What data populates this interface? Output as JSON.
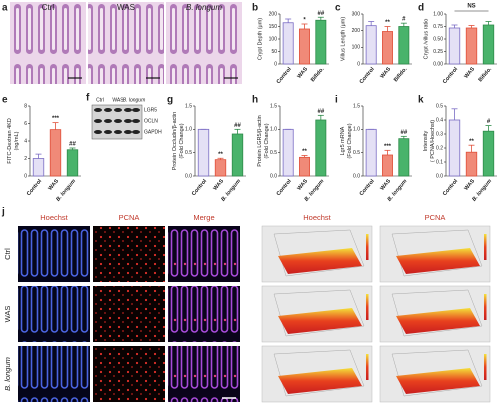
{
  "figure": {
    "a": {
      "letter": "a",
      "labels": [
        "Ctrl",
        "WAS",
        "B. longum"
      ]
    },
    "f": {
      "letter": "f",
      "lanes": [
        "Ctrl",
        "WAS",
        "B. longum"
      ],
      "bands": [
        "LGR5",
        "OCLN",
        "GAPDH"
      ]
    },
    "j": {
      "letter": "j",
      "columns": [
        "Hoechst",
        "PCNA",
        "Merge",
        "Hoechst",
        "PCNA"
      ],
      "rows": [
        "Ctrl",
        "WAS",
        "B. longum"
      ]
    }
  },
  "chart_data": [
    {
      "type": "bar",
      "label": "b",
      "ylabel": [
        "Crypt Depth (μm)"
      ],
      "categories": [
        "Control",
        "WAS",
        "Bifido."
      ],
      "values": [
        165,
        140,
        175
      ],
      "errors": [
        15,
        20,
        12
      ],
      "ylim": [
        0,
        200
      ],
      "yticks": [
        0,
        50,
        100,
        150,
        200
      ],
      "value_marks": [
        null,
        "*",
        "##"
      ],
      "colors": [
        "#e4e0f5",
        "#f08a78",
        "#49b36b"
      ],
      "edgecolors": [
        "#7a6cc4",
        "#e0503a",
        "#2e8b4a"
      ]
    },
    {
      "type": "bar",
      "label": "c",
      "ylabel": [
        "Villus Length (μm)"
      ],
      "categories": [
        "Control",
        "WAS",
        "Bifido."
      ],
      "values": [
        230,
        195,
        225
      ],
      "errors": [
        25,
        30,
        20
      ],
      "ylim": [
        0,
        300
      ],
      "yticks": [
        0,
        100,
        200,
        300
      ],
      "value_marks": [
        null,
        "**",
        "#"
      ],
      "colors": [
        "#e4e0f5",
        "#f08a78",
        "#49b36b"
      ],
      "edgecolors": [
        "#7a6cc4",
        "#e0503a",
        "#2e8b4a"
      ]
    },
    {
      "type": "bar",
      "label": "d",
      "ylabel": [
        "Crypt /villus ratio"
      ],
      "categories": [
        "Control",
        "WAS",
        "Bifido."
      ],
      "values": [
        0.72,
        0.72,
        0.78
      ],
      "errors": [
        0.06,
        0.05,
        0.07
      ],
      "ylim": [
        0,
        1
      ],
      "yticks": [
        {
          "value": 0,
          "label": "0.00"
        },
        {
          "value": 0.25,
          "label": "0.25"
        },
        {
          "value": 0.5,
          "label": "0.50"
        },
        {
          "value": 0.75,
          "label": "0.75"
        },
        {
          "value": 1,
          "label": "1.00"
        }
      ],
      "annotation": "NS",
      "colors": [
        "#e4e0f5",
        "#f08a78",
        "#49b36b"
      ],
      "edgecolors": [
        "#7a6cc4",
        "#e0503a",
        "#2e8b4a"
      ]
    },
    {
      "type": "bar",
      "label": "e",
      "ylabel": [
        "FITC-Dextran 4KD",
        "(ng/mL)"
      ],
      "categories": [
        "Control",
        "WAS",
        "B. longum"
      ],
      "values": [
        2.0,
        5.3,
        3.0
      ],
      "errors": [
        0.5,
        0.8,
        0.2
      ],
      "ylim": [
        0,
        8
      ],
      "yticks": [
        0,
        2,
        4,
        6,
        8
      ],
      "value_marks": [
        null,
        "***",
        "##"
      ],
      "colors": [
        "#e4e0f5",
        "#f08a78",
        "#49b36b"
      ],
      "edgecolors": [
        "#7a6cc4",
        "#e0503a",
        "#2e8b4a"
      ]
    },
    {
      "type": "bar",
      "label": "g",
      "ylabel": [
        "Protein Occludin/β-actin",
        "(Fold Change)"
      ],
      "categories": [
        "Control",
        "WAS",
        "B. longum"
      ],
      "values": [
        1.0,
        0.35,
        0.9
      ],
      "errors": [
        0,
        0.03,
        0.1
      ],
      "ylim": [
        0,
        1.5
      ],
      "yticks": [
        {
          "value": 0,
          "label": "0.0"
        },
        {
          "value": 0.5,
          "label": "0.5"
        },
        {
          "value": 1,
          "label": "1.0"
        },
        {
          "value": 1.5,
          "label": "1.5"
        }
      ],
      "value_marks": [
        null,
        "**",
        "##"
      ],
      "colors": [
        "#e4e0f5",
        "#f08a78",
        "#49b36b"
      ],
      "edgecolors": [
        "#7a6cc4",
        "#e0503a",
        "#2e8b4a"
      ]
    },
    {
      "type": "bar",
      "label": "h",
      "ylabel": [
        "Protein LGR5/β-actin",
        "(Fold Change)"
      ],
      "categories": [
        "Control",
        "WAS",
        "B. longum"
      ],
      "values": [
        1.0,
        0.4,
        1.2
      ],
      "errors": [
        0,
        0.04,
        0.1
      ],
      "ylim": [
        0,
        1.5
      ],
      "yticks": [
        {
          "value": 0,
          "label": "0.0"
        },
        {
          "value": 0.5,
          "label": "0.5"
        },
        {
          "value": 1,
          "label": "1.0"
        },
        {
          "value": 1.5,
          "label": "1.5"
        }
      ],
      "value_marks": [
        null,
        "**",
        "##"
      ],
      "colors": [
        "#e4e0f5",
        "#f08a78",
        "#49b36b"
      ],
      "edgecolors": [
        "#7a6cc4",
        "#e0503a",
        "#2e8b4a"
      ]
    },
    {
      "type": "bar",
      "label": "i",
      "ylabel": [
        "Lgr5 mRNA",
        "(Fold Change)"
      ],
      "categories": [
        "Control",
        "WAS",
        "B. longum"
      ],
      "values": [
        1.0,
        0.45,
        0.8
      ],
      "errors": [
        0,
        0.1,
        0.05
      ],
      "ylim": [
        0,
        1.5
      ],
      "yticks": [
        {
          "value": 0,
          "label": "0.0"
        },
        {
          "value": 0.5,
          "label": "0.5"
        },
        {
          "value": 1,
          "label": "1.0"
        },
        {
          "value": 1.5,
          "label": "1.5"
        }
      ],
      "value_marks": [
        null,
        "***",
        "##"
      ],
      "colors": [
        "#e4e0f5",
        "#f08a78",
        "#49b36b"
      ],
      "edgecolors": [
        "#7a6cc4",
        "#e0503a",
        "#2e8b4a"
      ]
    },
    {
      "type": "bar",
      "label": "k",
      "ylabel": [
        "Intensity",
        "( PCNA/Hoechst)"
      ],
      "categories": [
        "Control",
        "WAS",
        "B. longum"
      ],
      "values": [
        0.4,
        0.17,
        0.32
      ],
      "errors": [
        0.08,
        0.05,
        0.04
      ],
      "ylim": [
        0,
        0.5
      ],
      "yticks": [
        {
          "value": 0,
          "label": "0.0"
        },
        {
          "value": 0.1,
          "label": "0.1"
        },
        {
          "value": 0.2,
          "label": "0.2"
        },
        {
          "value": 0.3,
          "label": "0.3"
        },
        {
          "value": 0.4,
          "label": "0.4"
        },
        {
          "value": 0.5,
          "label": "0.5"
        }
      ],
      "value_marks": [
        null,
        "**",
        "#"
      ],
      "colors": [
        "#e4e0f5",
        "#f08a78",
        "#49b36b"
      ],
      "edgecolors": [
        "#7a6cc4",
        "#e0503a",
        "#2e8b4a"
      ]
    }
  ]
}
